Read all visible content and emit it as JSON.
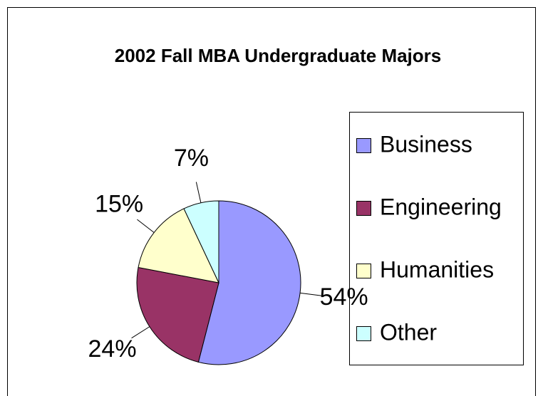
{
  "chart_data": {
    "type": "pie",
    "title": "2002 Fall MBA Undergraduate Majors",
    "categories": [
      "Business",
      "Engineering",
      "Humanities",
      "Other"
    ],
    "values": [
      54,
      24,
      15,
      7
    ],
    "value_labels": [
      "54%",
      "24%",
      "15%",
      "7%"
    ],
    "colors": [
      "#9999ff",
      "#993366",
      "#ffffcc",
      "#ccffff"
    ],
    "legend": "right"
  }
}
